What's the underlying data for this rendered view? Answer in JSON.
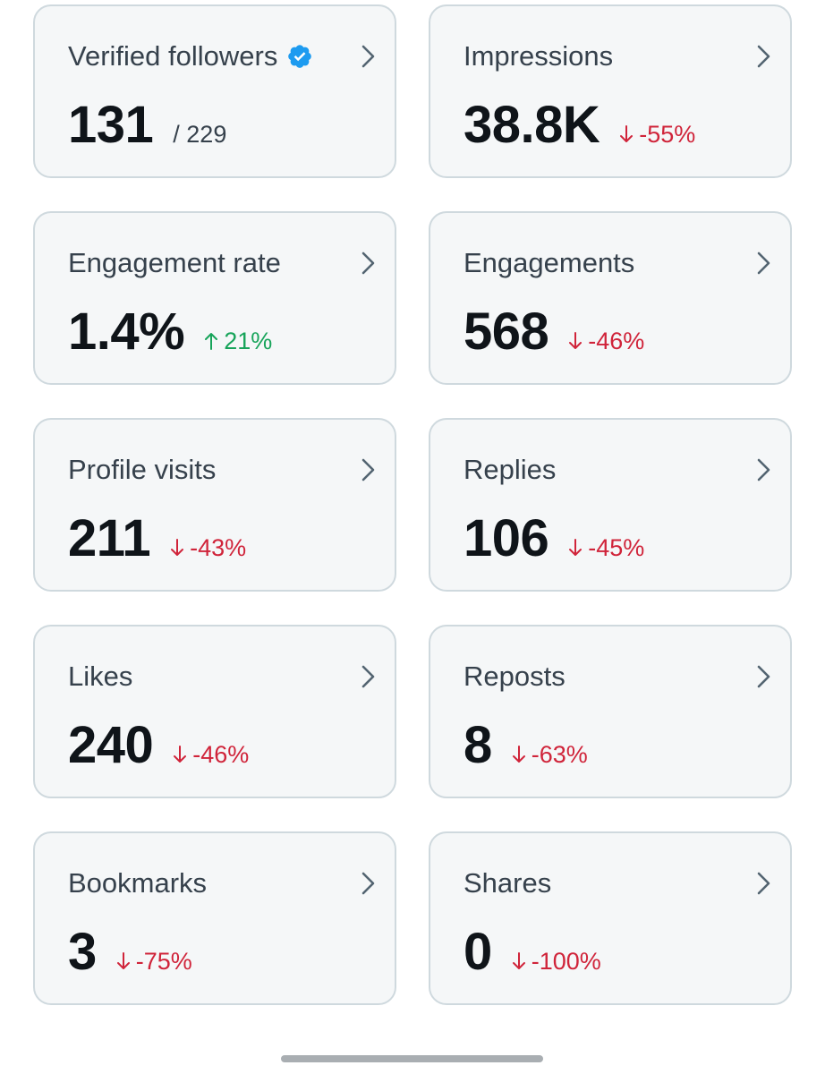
{
  "colors": {
    "card_background": "#f5f7f8",
    "card_border": "#cfd9de",
    "title_text": "#36414c",
    "value_text": "#0f1419",
    "negative": "#d0243a",
    "positive": "#17a45a",
    "verified_badge": "#1d9bf0"
  },
  "cards": [
    {
      "title": "Verified followers",
      "value": "131",
      "secondary": "/ 229",
      "badge": "verified-icon"
    },
    {
      "title": "Impressions",
      "value": "38.8K",
      "change": "-55%",
      "direction": "down"
    },
    {
      "title": "Engagement rate",
      "value": "1.4%",
      "change": "21%",
      "direction": "up"
    },
    {
      "title": "Engagements",
      "value": "568",
      "change": "-46%",
      "direction": "down"
    },
    {
      "title": "Profile visits",
      "value": "211",
      "change": "-43%",
      "direction": "down"
    },
    {
      "title": "Replies",
      "value": "106",
      "change": "-45%",
      "direction": "down"
    },
    {
      "title": "Likes",
      "value": "240",
      "change": "-46%",
      "direction": "down"
    },
    {
      "title": "Reposts",
      "value": "8",
      "change": "-63%",
      "direction": "down"
    },
    {
      "title": "Bookmarks",
      "value": "3",
      "change": "-75%",
      "direction": "down"
    },
    {
      "title": "Shares",
      "value": "0",
      "change": "-100%",
      "direction": "down"
    }
  ]
}
